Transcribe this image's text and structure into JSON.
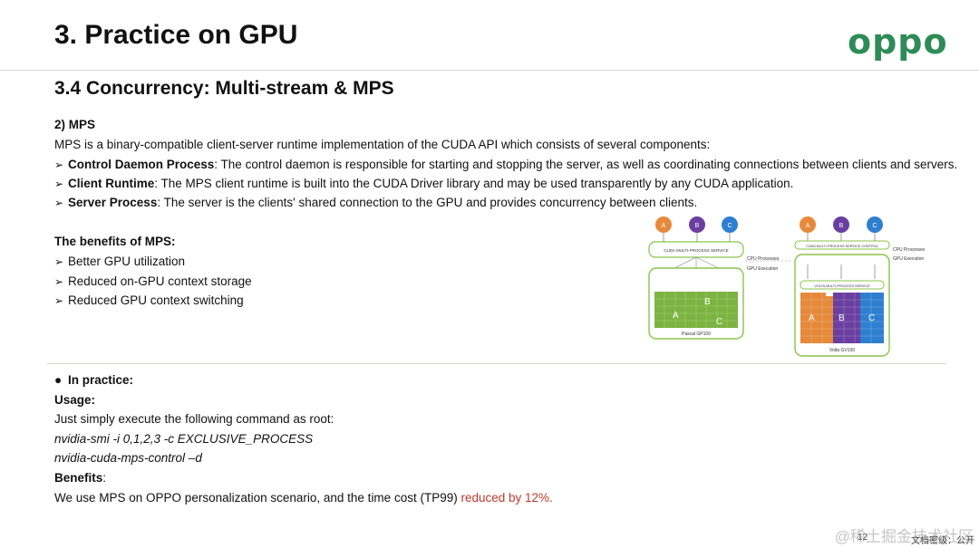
{
  "header": {
    "title": "3. Practice on GPU",
    "logo": "oppo"
  },
  "section_title": "3.4 Concurrency: Multi-stream & MPS",
  "mps": {
    "heading": "2) MPS",
    "intro": "MPS is a binary-compatible client-server runtime implementation of the CUDA API which consists of several components:",
    "components": [
      {
        "name": "Control Daemon Process",
        "desc": ": The control daemon is responsible for starting and stopping the server, as well as coordinating connections between clients and servers."
      },
      {
        "name": "Client Runtime",
        "desc": ": The MPS client runtime is built into the CUDA Driver library and may be used transparently by any CUDA application."
      },
      {
        "name": "Server Process",
        "desc": ": The server is the clients' shared connection to the GPU and provides concurrency between clients."
      }
    ],
    "benefits_heading": "The benefits of MPS:",
    "benefits": [
      "Better GPU utilization",
      "Reduced on-GPU context storage",
      "Reduced GPU context switching"
    ]
  },
  "diagram": {
    "left": {
      "clients": [
        "A",
        "B",
        "C"
      ],
      "service_label": "CUDA MULTI-PROCESS SERVICE",
      "gpu_label": "Pascal GP100",
      "regions": [
        "A",
        "B",
        "C"
      ]
    },
    "right": {
      "clients": [
        "A",
        "B",
        "C"
      ],
      "control_label": "CUDA MULTI-PROCESS SERVICE CONTROL",
      "server_label": "VOLTA MULTI-PROCESS SERVICE",
      "gpu_label": "Volta GV100",
      "regions": [
        "A",
        "B",
        "C"
      ]
    },
    "cpu_label": "CPU Processes",
    "gpu_exec_label": "GPU Execution",
    "colors": {
      "A": "#e6893a",
      "B": "#6a3fa0",
      "C": "#2f7fd1",
      "pascal": "#7cb342",
      "border": "#8bc34a"
    }
  },
  "practice": {
    "heading": "In practice:",
    "usage_label": "Usage:",
    "usage_text": "Just simply execute the following command as root:",
    "commands": [
      "nvidia-smi -i 0,1,2,3 -c EXCLUSIVE_PROCESS",
      "nvidia-cuda-mps-control –d"
    ],
    "benefits_label": "Benefits",
    "benefits_colon": ":",
    "result_prefix": "We use MPS on OPPO personalization scenario, and the time cost (TP99) ",
    "result_highlight": "reduced by 12%."
  },
  "footer": {
    "page_number": "12",
    "classification": "文档密级：公开",
    "watermark": "@稀土掘金技术社区"
  }
}
